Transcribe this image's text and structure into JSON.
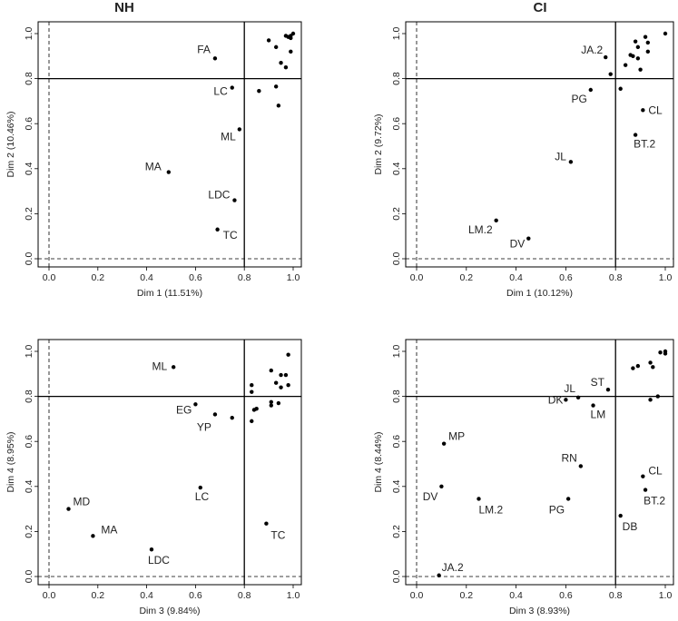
{
  "titles": {
    "left": "NH",
    "right": "CI"
  },
  "chart_data": [
    {
      "type": "scatter",
      "panel": "top-left",
      "title": "NH",
      "xlabel": "Dim 1 (11.51%)",
      "ylabel": "Dim 2 (10.46%)",
      "xlim": [
        0,
        1
      ],
      "ylim": [
        0,
        1
      ],
      "ticks": [
        "0.0",
        "0.2",
        "0.4",
        "0.6",
        "0.8",
        "1.0"
      ],
      "threshold": 0.8,
      "grid": false,
      "points": [
        {
          "x": 0.68,
          "y": 0.89,
          "label": "FA"
        },
        {
          "x": 0.75,
          "y": 0.76,
          "label": "LC"
        },
        {
          "x": 0.78,
          "y": 0.575,
          "label": "ML"
        },
        {
          "x": 0.49,
          "y": 0.385,
          "label": "MA"
        },
        {
          "x": 0.76,
          "y": 0.26,
          "label": "LDC"
        },
        {
          "x": 0.69,
          "y": 0.13,
          "label": "TC"
        },
        {
          "x": 0.86,
          "y": 0.745,
          "label": ""
        },
        {
          "x": 0.93,
          "y": 0.765,
          "label": ""
        },
        {
          "x": 0.94,
          "y": 0.68,
          "label": ""
        },
        {
          "x": 0.9,
          "y": 0.97,
          "label": ""
        },
        {
          "x": 0.93,
          "y": 0.94,
          "label": ""
        },
        {
          "x": 0.95,
          "y": 0.87,
          "label": ""
        },
        {
          "x": 0.97,
          "y": 0.85,
          "label": ""
        },
        {
          "x": 0.99,
          "y": 0.92,
          "label": ""
        },
        {
          "x": 0.97,
          "y": 0.99,
          "label": ""
        },
        {
          "x": 0.98,
          "y": 0.985,
          "label": ""
        },
        {
          "x": 0.99,
          "y": 0.99,
          "label": ""
        },
        {
          "x": 1.0,
          "y": 1.0,
          "label": ""
        },
        {
          "x": 0.99,
          "y": 0.98,
          "label": ""
        }
      ]
    },
    {
      "type": "scatter",
      "panel": "top-right",
      "title": "CI",
      "xlabel": "Dim 1 (10.12%)",
      "ylabel": "Dim 2 (9.72%)",
      "xlim": [
        0,
        1
      ],
      "ylim": [
        0,
        1
      ],
      "ticks": [
        "0.0",
        "0.2",
        "0.4",
        "0.6",
        "0.8",
        "1.0"
      ],
      "threshold": 0.8,
      "grid": false,
      "points": [
        {
          "x": 0.76,
          "y": 0.895,
          "label": "JA.2"
        },
        {
          "x": 0.7,
          "y": 0.75,
          "label": "PG"
        },
        {
          "x": 0.91,
          "y": 0.66,
          "label": "CL"
        },
        {
          "x": 0.62,
          "y": 0.43,
          "label": "JL"
        },
        {
          "x": 0.88,
          "y": 0.55,
          "label": "BT.2"
        },
        {
          "x": 0.32,
          "y": 0.17,
          "label": "LM.2"
        },
        {
          "x": 0.45,
          "y": 0.09,
          "label": "DV"
        },
        {
          "x": 0.78,
          "y": 0.82,
          "label": ""
        },
        {
          "x": 0.82,
          "y": 0.755,
          "label": ""
        },
        {
          "x": 0.84,
          "y": 0.86,
          "label": ""
        },
        {
          "x": 0.86,
          "y": 0.905,
          "label": ""
        },
        {
          "x": 0.87,
          "y": 0.9,
          "label": ""
        },
        {
          "x": 0.88,
          "y": 0.965,
          "label": ""
        },
        {
          "x": 0.89,
          "y": 0.94,
          "label": ""
        },
        {
          "x": 0.89,
          "y": 0.89,
          "label": ""
        },
        {
          "x": 0.9,
          "y": 0.84,
          "label": ""
        },
        {
          "x": 0.92,
          "y": 0.985,
          "label": ""
        },
        {
          "x": 0.93,
          "y": 0.96,
          "label": ""
        },
        {
          "x": 0.93,
          "y": 0.92,
          "label": ""
        },
        {
          "x": 1.0,
          "y": 1.0,
          "label": ""
        }
      ]
    },
    {
      "type": "scatter",
      "panel": "bottom-left",
      "title": "",
      "xlabel": "Dim 3 (9.84%)",
      "ylabel": "Dim 4 (8.95%)",
      "xlim": [
        0,
        1
      ],
      "ylim": [
        0,
        1
      ],
      "ticks": [
        "0.0",
        "0.2",
        "0.4",
        "0.6",
        "0.8",
        "1.0"
      ],
      "threshold": 0.8,
      "grid": false,
      "points": [
        {
          "x": 0.51,
          "y": 0.93,
          "label": "ML"
        },
        {
          "x": 0.6,
          "y": 0.765,
          "label": "EG"
        },
        {
          "x": 0.68,
          "y": 0.72,
          "label": "YP"
        },
        {
          "x": 0.62,
          "y": 0.395,
          "label": "LC"
        },
        {
          "x": 0.08,
          "y": 0.3,
          "label": "MD"
        },
        {
          "x": 0.18,
          "y": 0.18,
          "label": "MA"
        },
        {
          "x": 0.42,
          "y": 0.12,
          "label": "LDC"
        },
        {
          "x": 0.89,
          "y": 0.235,
          "label": "TC"
        },
        {
          "x": 0.75,
          "y": 0.705,
          "label": ""
        },
        {
          "x": 0.83,
          "y": 0.69,
          "label": ""
        },
        {
          "x": 0.84,
          "y": 0.74,
          "label": ""
        },
        {
          "x": 0.85,
          "y": 0.745,
          "label": ""
        },
        {
          "x": 0.83,
          "y": 0.82,
          "label": ""
        },
        {
          "x": 0.83,
          "y": 0.85,
          "label": ""
        },
        {
          "x": 0.91,
          "y": 0.76,
          "label": ""
        },
        {
          "x": 0.91,
          "y": 0.775,
          "label": ""
        },
        {
          "x": 0.91,
          "y": 0.915,
          "label": ""
        },
        {
          "x": 0.93,
          "y": 0.86,
          "label": ""
        },
        {
          "x": 0.94,
          "y": 0.77,
          "label": ""
        },
        {
          "x": 0.95,
          "y": 0.84,
          "label": ""
        },
        {
          "x": 0.95,
          "y": 0.895,
          "label": ""
        },
        {
          "x": 0.97,
          "y": 0.895,
          "label": ""
        },
        {
          "x": 0.98,
          "y": 0.85,
          "label": ""
        },
        {
          "x": 0.98,
          "y": 0.985,
          "label": ""
        }
      ]
    },
    {
      "type": "scatter",
      "panel": "bottom-right",
      "title": "",
      "xlabel": "Dim 3 (8.93%)",
      "ylabel": "Dim 4 (8.44%)",
      "xlim": [
        0,
        1
      ],
      "ylim": [
        0,
        1
      ],
      "ticks": [
        "0.0",
        "0.2",
        "0.4",
        "0.6",
        "0.8",
        "1.0"
      ],
      "threshold": 0.8,
      "grid": false,
      "points": [
        {
          "x": 0.11,
          "y": 0.59,
          "label": "MP"
        },
        {
          "x": 0.1,
          "y": 0.4,
          "label": "DV"
        },
        {
          "x": 0.25,
          "y": 0.345,
          "label": "LM.2"
        },
        {
          "x": 0.09,
          "y": 0.005,
          "label": "JA.2"
        },
        {
          "x": 0.65,
          "y": 0.795,
          "label": "JL"
        },
        {
          "x": 0.6,
          "y": 0.785,
          "label": "DK"
        },
        {
          "x": 0.77,
          "y": 0.83,
          "label": "ST"
        },
        {
          "x": 0.71,
          "y": 0.76,
          "label": "LM"
        },
        {
          "x": 0.66,
          "y": 0.49,
          "label": "RN"
        },
        {
          "x": 0.61,
          "y": 0.345,
          "label": "PG"
        },
        {
          "x": 0.82,
          "y": 0.27,
          "label": "DB"
        },
        {
          "x": 0.91,
          "y": 0.445,
          "label": "CL"
        },
        {
          "x": 0.92,
          "y": 0.385,
          "label": "BT.2"
        },
        {
          "x": 0.87,
          "y": 0.925,
          "label": ""
        },
        {
          "x": 0.89,
          "y": 0.935,
          "label": ""
        },
        {
          "x": 0.94,
          "y": 0.95,
          "label": ""
        },
        {
          "x": 0.95,
          "y": 0.93,
          "label": ""
        },
        {
          "x": 0.94,
          "y": 0.785,
          "label": ""
        },
        {
          "x": 0.97,
          "y": 0.8,
          "label": ""
        },
        {
          "x": 0.98,
          "y": 0.995,
          "label": ""
        },
        {
          "x": 1.0,
          "y": 0.99,
          "label": ""
        },
        {
          "x": 1.0,
          "y": 1.0,
          "label": ""
        }
      ]
    }
  ]
}
